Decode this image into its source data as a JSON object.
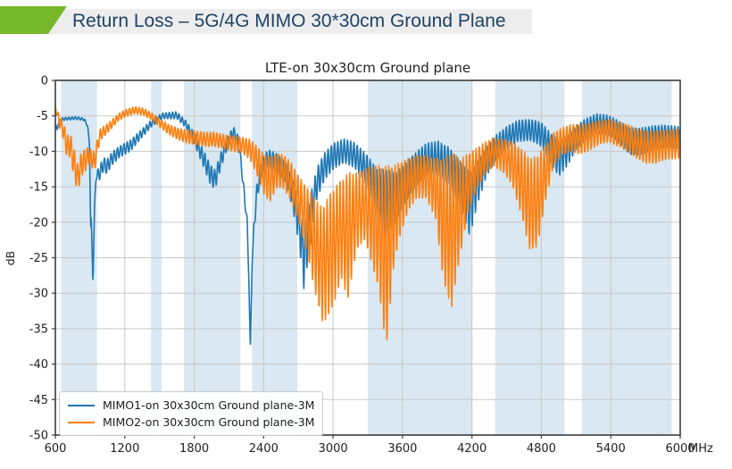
{
  "header": {
    "title": "Return Loss – 5G/4G MIMO 30*30cm Ground Plane",
    "accent_color": "#76b82a",
    "bar_color": "#ededed",
    "title_color": "#1f4265"
  },
  "chart_data": {
    "type": "line",
    "title": "LTE-on 30x30cm Ground plane",
    "ylabel": "dB",
    "x_unit": "MHz",
    "xlim": [
      600,
      6000
    ],
    "ylim": [
      -50,
      0
    ],
    "x_ticks": [
      600,
      1200,
      1800,
      2400,
      3000,
      3600,
      4200,
      4800,
      5400,
      6000
    ],
    "y_ticks": [
      0,
      -5,
      -10,
      -15,
      -20,
      -25,
      -30,
      -35,
      -40,
      -45,
      -50
    ],
    "grid": true,
    "grid_color": "#c8c8c8",
    "spine_color": "#3c3c3c",
    "band_color": "#d9e8f2",
    "legend_position": "lower left",
    "highlight_bands_mhz": [
      [
        650,
        960
      ],
      [
        1427,
        1518
      ],
      [
        1710,
        2200
      ],
      [
        2300,
        2690
      ],
      [
        3300,
        4200
      ],
      [
        4400,
        5000
      ],
      [
        5150,
        5925
      ]
    ],
    "ripple_period_mhz": 28,
    "series": [
      {
        "name": "MIMO1-on 30x30cm Ground plane-3M",
        "color": "#1f77b4",
        "ripple_phase": 0.5,
        "points": [
          [
            600,
            -6.3,
            0.2
          ],
          [
            615,
            -6.8,
            0.2
          ],
          [
            640,
            -5.5,
            0.2
          ],
          [
            700,
            -5.4,
            0.2
          ],
          [
            780,
            -5.3,
            0.2
          ],
          [
            850,
            -5.5,
            0.2
          ],
          [
            880,
            -6.5,
            0.1
          ],
          [
            895,
            -9,
            0
          ],
          [
            905,
            -21,
            0
          ],
          [
            910,
            -19,
            0
          ],
          [
            925,
            -28.7,
            0
          ],
          [
            938,
            -18,
            0
          ],
          [
            952,
            -13.5,
            0.5
          ],
          [
            985,
            -13,
            1
          ],
          [
            1015,
            -11.8,
            1
          ],
          [
            1045,
            -12.2,
            1
          ],
          [
            1090,
            -11,
            0.9
          ],
          [
            1160,
            -10,
            0.8
          ],
          [
            1250,
            -9.2,
            0.8
          ],
          [
            1340,
            -7.6,
            0.6
          ],
          [
            1440,
            -5.9,
            0.5
          ],
          [
            1530,
            -5,
            0.4
          ],
          [
            1650,
            -4.9,
            0.5
          ],
          [
            1730,
            -6.2,
            0.5
          ],
          [
            1810,
            -8.5,
            0.9
          ],
          [
            1880,
            -11,
            1.2
          ],
          [
            1940,
            -13.3,
            1.4
          ],
          [
            1980,
            -14,
            1.4
          ],
          [
            2030,
            -11.3,
            1.1
          ],
          [
            2090,
            -8.6,
            0.8
          ],
          [
            2140,
            -7.3,
            0.8
          ],
          [
            2185,
            -8.8,
            0.8
          ],
          [
            2210,
            -12.5,
            0.6
          ],
          [
            2235,
            -16.5,
            0.8
          ],
          [
            2258,
            -20,
            0.5
          ],
          [
            2272,
            -28,
            0
          ],
          [
            2285,
            -38,
            0
          ],
          [
            2300,
            -26,
            0
          ],
          [
            2315,
            -21,
            0.8
          ],
          [
            2340,
            -16,
            1.2
          ],
          [
            2375,
            -12.5,
            1.3
          ],
          [
            2440,
            -11,
            1.3
          ],
          [
            2520,
            -11.8,
            1.4
          ],
          [
            2590,
            -13,
            1.5
          ],
          [
            2650,
            -16,
            2
          ],
          [
            2705,
            -20,
            3
          ],
          [
            2748,
            -25,
            4.5
          ],
          [
            2800,
            -20,
            3.5
          ],
          [
            2860,
            -14.5,
            2.2
          ],
          [
            2930,
            -12,
            1.9
          ],
          [
            3010,
            -10.6,
            1.8
          ],
          [
            3100,
            -9.9,
            1.7
          ],
          [
            3190,
            -10.6,
            1.8
          ],
          [
            3290,
            -12.6,
            2.2
          ],
          [
            3380,
            -15.5,
            3
          ],
          [
            3455,
            -17.5,
            5
          ],
          [
            3540,
            -16.5,
            3.5
          ],
          [
            3620,
            -14.5,
            2.8
          ],
          [
            3710,
            -12.6,
            2.4
          ],
          [
            3800,
            -11.2,
            2.3
          ],
          [
            3900,
            -10.9,
            2.4
          ],
          [
            4000,
            -12,
            2.6
          ],
          [
            4100,
            -14.6,
            3.2
          ],
          [
            4180,
            -17.5,
            4.5
          ],
          [
            4245,
            -14.5,
            3.2
          ],
          [
            4320,
            -11.6,
            2.2
          ],
          [
            4400,
            -9.6,
            1.8
          ],
          [
            4500,
            -8.1,
            1.6
          ],
          [
            4600,
            -7.1,
            1.5
          ],
          [
            4710,
            -7,
            1.5
          ],
          [
            4800,
            -7.6,
            1.7
          ],
          [
            4880,
            -9.6,
            2.2
          ],
          [
            4950,
            -11,
            2.5
          ],
          [
            5020,
            -10,
            2.2
          ],
          [
            5100,
            -8.1,
            1.7
          ],
          [
            5180,
            -6.9,
            1.5
          ],
          [
            5280,
            -6.1,
            1.4
          ],
          [
            5380,
            -6.3,
            1.4
          ],
          [
            5480,
            -7.4,
            1.6
          ],
          [
            5570,
            -8.6,
            1.9
          ],
          [
            5660,
            -8.6,
            1.9
          ],
          [
            5760,
            -8.1,
            1.7
          ],
          [
            5860,
            -7.9,
            1.6
          ],
          [
            6000,
            -8.1,
            1.6
          ]
        ]
      },
      {
        "name": "MIMO2-on 30x30cm Ground plane-3M",
        "color": "#ff7f0e",
        "ripple_phase": 2.4,
        "points": [
          [
            600,
            -3.8,
            0.3
          ],
          [
            635,
            -5.8,
            0.8
          ],
          [
            665,
            -6.8,
            1.2
          ],
          [
            700,
            -9.3,
            1.6
          ],
          [
            732,
            -9.2,
            1.6
          ],
          [
            762,
            -11.8,
            2.2
          ],
          [
            795,
            -13.8,
            1.9
          ],
          [
            825,
            -11.8,
            1.7
          ],
          [
            858,
            -11.3,
            1.6
          ],
          [
            888,
            -10.6,
            1.2
          ],
          [
            915,
            -11,
            1.2
          ],
          [
            938,
            -11.6,
            1.6
          ],
          [
            962,
            -9.3,
            1
          ],
          [
            990,
            -7.6,
            0.8
          ],
          [
            1035,
            -7,
            0.7
          ],
          [
            1085,
            -6.2,
            0.6
          ],
          [
            1145,
            -5.2,
            0.5
          ],
          [
            1210,
            -4.6,
            0.5
          ],
          [
            1285,
            -4.2,
            0.5
          ],
          [
            1360,
            -4.4,
            0.5
          ],
          [
            1435,
            -5.1,
            0.5
          ],
          [
            1510,
            -6.1,
            0.6
          ],
          [
            1580,
            -6.9,
            0.7
          ],
          [
            1655,
            -7.5,
            0.8
          ],
          [
            1730,
            -7.9,
            0.9
          ],
          [
            1810,
            -8.1,
            1
          ],
          [
            1890,
            -8.3,
            1
          ],
          [
            1970,
            -8.3,
            1
          ],
          [
            2050,
            -8.6,
            1
          ],
          [
            2130,
            -8.9,
            1.1
          ],
          [
            2210,
            -9.1,
            1.1
          ],
          [
            2280,
            -9.7,
            1.4
          ],
          [
            2340,
            -11.2,
            2
          ],
          [
            2400,
            -13.2,
            2.8
          ],
          [
            2455,
            -14,
            3.2
          ],
          [
            2515,
            -12.7,
            2.4
          ],
          [
            2575,
            -12.9,
            2.4
          ],
          [
            2635,
            -14.2,
            2.7
          ],
          [
            2700,
            -16.6,
            3.2
          ],
          [
            2770,
            -19.5,
            4.5
          ],
          [
            2840,
            -23,
            6.5
          ],
          [
            2905,
            -26,
            8
          ],
          [
            2955,
            -25,
            8.5
          ],
          [
            3015,
            -23,
            8
          ],
          [
            3075,
            -21,
            7
          ],
          [
            3130,
            -22,
            9
          ],
          [
            3200,
            -18.5,
            5.5
          ],
          [
            3270,
            -17.5,
            5
          ],
          [
            3340,
            -19,
            7
          ],
          [
            3400,
            -21,
            9
          ],
          [
            3460,
            -25,
            13
          ],
          [
            3525,
            -19,
            7
          ],
          [
            3585,
            -16.5,
            5
          ],
          [
            3655,
            -14.6,
            3.6
          ],
          [
            3725,
            -13.6,
            3
          ],
          [
            3805,
            -13.6,
            3
          ],
          [
            3885,
            -15.2,
            4.2
          ],
          [
            3960,
            -20,
            9
          ],
          [
            4025,
            -21,
            11
          ],
          [
            4095,
            -18,
            7
          ],
          [
            4165,
            -14.6,
            4.2
          ],
          [
            4235,
            -12.6,
            3
          ],
          [
            4305,
            -11.1,
            2.3
          ],
          [
            4385,
            -10.1,
            2
          ],
          [
            4465,
            -10.6,
            2.3
          ],
          [
            4545,
            -11.6,
            3
          ],
          [
            4625,
            -14.2,
            4.6
          ],
          [
            4705,
            -17.6,
            6.6
          ],
          [
            4765,
            -17,
            6.4
          ],
          [
            4835,
            -13.1,
            4
          ],
          [
            4905,
            -9.7,
            2.3
          ],
          [
            4975,
            -8.6,
            1.9
          ],
          [
            5055,
            -8.1,
            1.9
          ],
          [
            5135,
            -8.3,
            2.1
          ],
          [
            5225,
            -7.9,
            1.9
          ],
          [
            5305,
            -7.3,
            1.7
          ],
          [
            5385,
            -7.1,
            1.6
          ],
          [
            5465,
            -7.6,
            1.7
          ],
          [
            5545,
            -8.1,
            1.9
          ],
          [
            5625,
            -8.9,
            2.1
          ],
          [
            5705,
            -9.4,
            2.3
          ],
          [
            5785,
            -9.4,
            2.3
          ],
          [
            5865,
            -9.1,
            2.1
          ],
          [
            6000,
            -8.9,
            2.1
          ]
        ]
      }
    ]
  }
}
